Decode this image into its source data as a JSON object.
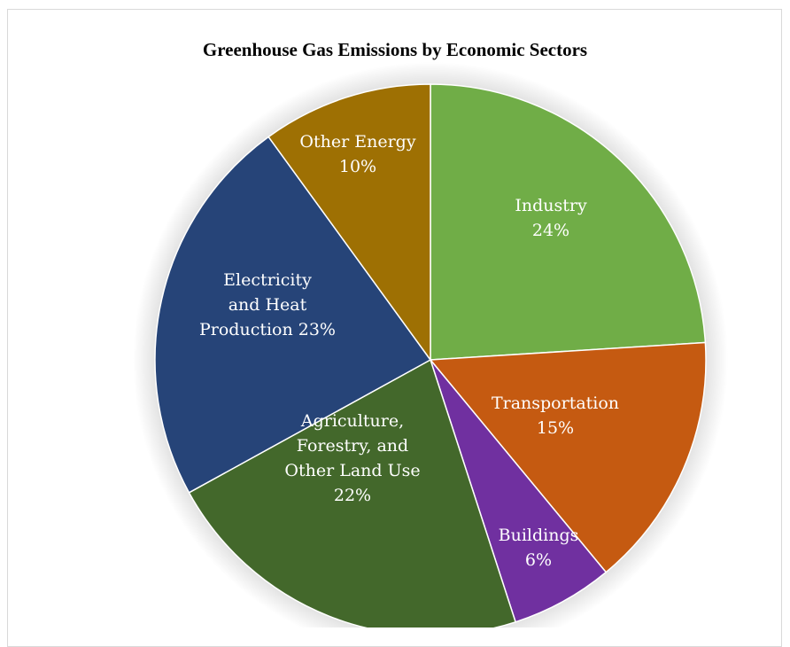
{
  "chart_data": {
    "type": "pie",
    "title": "Greenhouse Gas Emissions by Economic Sectors",
    "slices": [
      {
        "name": "Industry",
        "value": 24,
        "label_lines": [
          "Industry",
          "24%"
        ],
        "color": "#70ad47"
      },
      {
        "name": "Transportation",
        "value": 15,
        "label_lines": [
          "Transportation",
          "15%"
        ],
        "color": "#c55a11"
      },
      {
        "name": "Buildings",
        "value": 6,
        "label_lines": [
          "Buildings",
          "6%"
        ],
        "color": "#7030a0"
      },
      {
        "name": "Agriculture, Forestry, and Other Land Use",
        "value": 22,
        "label_lines": [
          "Agriculture,",
          "Forestry, and",
          "Other Land Use",
          "22%"
        ],
        "color": "#43682b"
      },
      {
        "name": "Electricity and Heat Production",
        "value": 23,
        "label_lines": [
          "Electricity",
          "and Heat",
          "Production 23%"
        ],
        "color": "#264478"
      },
      {
        "name": "Other Energy",
        "value": 10,
        "label_lines": [
          "Other Energy",
          "10%"
        ],
        "color": "#9e7003"
      }
    ],
    "start_angle_deg": 0,
    "direction": "clockwise",
    "legend": "none",
    "data_labels": "inside"
  }
}
